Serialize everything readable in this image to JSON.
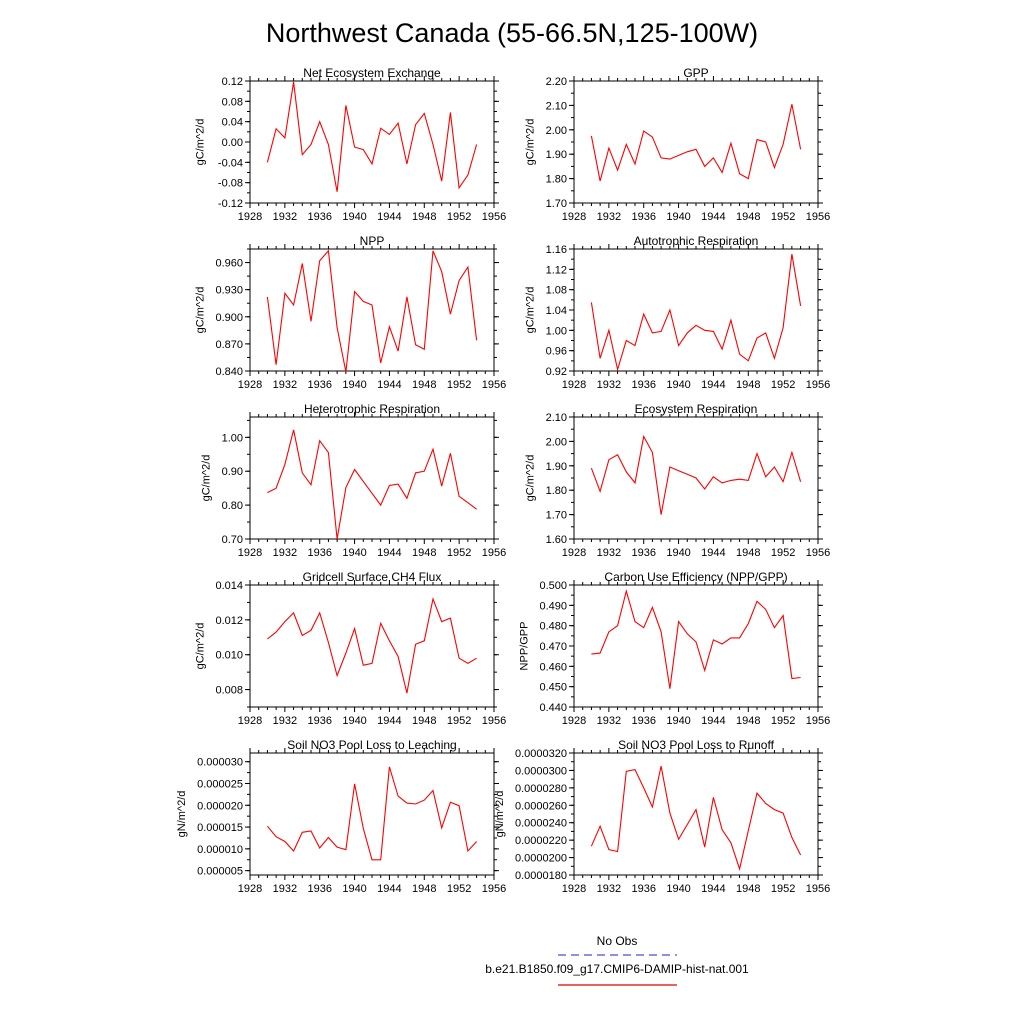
{
  "figure": {
    "title": "Northwest Canada (55-66.5N,125-100W)"
  },
  "legend": {
    "items": [
      {
        "label": "No Obs",
        "color": "#4a4adf",
        "dash": true
      },
      {
        "label": "b.e21.B1850.f09_g17.CMIP6-DAMIP-hist-nat.001",
        "color": "#e00000",
        "dash": false
      }
    ]
  },
  "series_color": "#ff0000",
  "chart_data": [
    {
      "type": "line",
      "title": "Net Ecosystem Exchange",
      "ylabel": "gC/m^2/d",
      "xlim": [
        1928,
        1956
      ],
      "xticks": [
        1928,
        1932,
        1936,
        1940,
        1944,
        1948,
        1952,
        1956
      ],
      "ylim": [
        -0.12,
        0.12
      ],
      "yticks": [
        "-0.12",
        "-0.08",
        "-0.04",
        "0.00",
        "0.04",
        "0.08",
        "0.12"
      ],
      "x": [
        1930,
        1931,
        1932,
        1933,
        1934,
        1935,
        1936,
        1937,
        1938,
        1939,
        1940,
        1941,
        1942,
        1943,
        1944,
        1945,
        1946,
        1947,
        1948,
        1949,
        1950,
        1951,
        1952,
        1953,
        1954
      ],
      "values": [
        -0.04,
        0.026,
        0.008,
        0.118,
        -0.025,
        -0.005,
        0.04,
        -0.005,
        -0.098,
        0.072,
        -0.01,
        -0.015,
        -0.043,
        0.027,
        0.015,
        0.037,
        -0.043,
        0.034,
        0.056,
        -0.005,
        -0.077,
        0.058,
        -0.09,
        -0.065,
        -0.005
      ]
    },
    {
      "type": "line",
      "title": "GPP",
      "ylabel": "gC/m^2/d",
      "xlim": [
        1928,
        1956
      ],
      "xticks": [
        1928,
        1932,
        1936,
        1940,
        1944,
        1948,
        1952,
        1956
      ],
      "ylim": [
        1.7,
        2.2
      ],
      "yticks": [
        "1.70",
        "1.80",
        "1.90",
        "2.00",
        "2.10",
        "2.20"
      ],
      "x": [
        1930,
        1931,
        1932,
        1933,
        1934,
        1935,
        1936,
        1937,
        1938,
        1939,
        1940,
        1941,
        1942,
        1943,
        1944,
        1945,
        1946,
        1947,
        1948,
        1949,
        1950,
        1951,
        1952,
        1953,
        1954
      ],
      "values": [
        1.975,
        1.79,
        1.925,
        1.835,
        1.94,
        1.86,
        1.995,
        1.97,
        1.885,
        1.88,
        1.895,
        1.91,
        1.92,
        1.85,
        1.885,
        1.825,
        1.945,
        1.82,
        1.8,
        1.96,
        1.95,
        1.845,
        1.94,
        2.105,
        1.92
      ]
    },
    {
      "type": "line",
      "title": "NPP",
      "ylabel": "gC/m^2/d",
      "xlim": [
        1928,
        1956
      ],
      "xticks": [
        1928,
        1932,
        1936,
        1940,
        1944,
        1948,
        1952,
        1956
      ],
      "ylim": [
        0.84,
        0.975
      ],
      "yticks": [
        "0.840",
        "0.870",
        "0.900",
        "0.930",
        "0.960"
      ],
      "ytick_values": [
        0.84,
        0.87,
        0.9,
        0.93,
        0.96
      ],
      "x": [
        1930,
        1931,
        1932,
        1933,
        1934,
        1935,
        1936,
        1937,
        1938,
        1939,
        1940,
        1941,
        1942,
        1943,
        1944,
        1945,
        1946,
        1947,
        1948,
        1949,
        1950,
        1951,
        1952,
        1953,
        1954
      ],
      "values": [
        0.922,
        0.847,
        0.926,
        0.913,
        0.959,
        0.895,
        0.962,
        0.973,
        0.888,
        0.839,
        0.928,
        0.917,
        0.913,
        0.849,
        0.889,
        0.862,
        0.922,
        0.869,
        0.864,
        0.973,
        0.95,
        0.903,
        0.94,
        0.955,
        0.874
      ]
    },
    {
      "type": "line",
      "title": "Autotrophic Respiration",
      "ylabel": "gC/m^2/d",
      "xlim": [
        1928,
        1956
      ],
      "xticks": [
        1928,
        1932,
        1936,
        1940,
        1944,
        1948,
        1952,
        1956
      ],
      "ylim": [
        0.92,
        1.16
      ],
      "yticks": [
        "0.92",
        "0.96",
        "1.00",
        "1.04",
        "1.08",
        "1.12",
        "1.16"
      ],
      "x": [
        1930,
        1931,
        1932,
        1933,
        1934,
        1935,
        1936,
        1937,
        1938,
        1939,
        1940,
        1941,
        1942,
        1943,
        1944,
        1945,
        1946,
        1947,
        1948,
        1949,
        1950,
        1951,
        1952,
        1953,
        1954
      ],
      "values": [
        1.055,
        0.945,
        1.0,
        0.923,
        0.98,
        0.97,
        1.032,
        0.995,
        0.998,
        1.04,
        0.97,
        0.995,
        1.01,
        1.0,
        0.998,
        0.963,
        1.02,
        0.953,
        0.94,
        0.985,
        0.995,
        0.945,
        1.005,
        1.15,
        1.048
      ]
    },
    {
      "type": "line",
      "title": "Heterotrophic Respiration",
      "ylabel": "gC/m^2/d",
      "xlim": [
        1928,
        1956
      ],
      "xticks": [
        1928,
        1932,
        1936,
        1940,
        1944,
        1948,
        1952,
        1956
      ],
      "ylim": [
        0.7,
        1.06
      ],
      "yticks": [
        "0.70",
        "0.80",
        "0.90",
        "1.00"
      ],
      "ytick_values": [
        0.7,
        0.8,
        0.9,
        1.0
      ],
      "x": [
        1930,
        1931,
        1932,
        1933,
        1934,
        1935,
        1936,
        1937,
        1938,
        1939,
        1940,
        1941,
        1942,
        1943,
        1944,
        1945,
        1946,
        1947,
        1948,
        1949,
        1950,
        1951,
        1952,
        1953,
        1954
      ],
      "values": [
        0.837,
        0.85,
        0.92,
        1.022,
        0.895,
        0.86,
        0.99,
        0.955,
        0.7,
        0.852,
        0.905,
        0.87,
        0.835,
        0.8,
        0.858,
        0.862,
        0.82,
        0.895,
        0.9,
        0.965,
        0.856,
        0.953,
        0.826,
        0.807,
        0.788
      ]
    },
    {
      "type": "line",
      "title": "Ecosystem Respiration",
      "ylabel": "gC/m^2/d",
      "xlim": [
        1928,
        1956
      ],
      "xticks": [
        1928,
        1932,
        1936,
        1940,
        1944,
        1948,
        1952,
        1956
      ],
      "ylim": [
        1.6,
        2.1
      ],
      "yticks": [
        "1.60",
        "1.70",
        "1.80",
        "1.90",
        "2.00",
        "2.10"
      ],
      "x": [
        1930,
        1931,
        1932,
        1933,
        1934,
        1935,
        1936,
        1937,
        1938,
        1939,
        1940,
        1941,
        1942,
        1943,
        1944,
        1945,
        1946,
        1947,
        1948,
        1949,
        1950,
        1951,
        1952,
        1953,
        1954
      ],
      "values": [
        1.89,
        1.795,
        1.925,
        1.945,
        1.875,
        1.83,
        2.02,
        1.955,
        1.7,
        1.895,
        1.88,
        1.865,
        1.85,
        1.805,
        1.855,
        1.83,
        1.84,
        1.845,
        1.84,
        1.95,
        1.855,
        1.895,
        1.835,
        1.955,
        1.835
      ]
    },
    {
      "type": "line",
      "title": "Gridcell Surface CH4 Flux",
      "ylabel": "gC/m^2/d",
      "xlim": [
        1928,
        1956
      ],
      "xticks": [
        1928,
        1932,
        1936,
        1940,
        1944,
        1948,
        1952,
        1956
      ],
      "ylim": [
        0.007,
        0.014
      ],
      "yticks": [
        "0.008",
        "0.010",
        "0.012",
        "0.014"
      ],
      "ytick_values": [
        0.008,
        0.01,
        0.012,
        0.014
      ],
      "x": [
        1930,
        1931,
        1932,
        1933,
        1934,
        1935,
        1936,
        1937,
        1938,
        1939,
        1940,
        1941,
        1942,
        1943,
        1944,
        1945,
        1946,
        1947,
        1948,
        1949,
        1950,
        1951,
        1952,
        1953,
        1954
      ],
      "values": [
        0.0109,
        0.0113,
        0.0119,
        0.0124,
        0.0111,
        0.0114,
        0.0124,
        0.0107,
        0.0088,
        0.0101,
        0.0115,
        0.0094,
        0.0095,
        0.0118,
        0.0108,
        0.0099,
        0.0078,
        0.0106,
        0.0108,
        0.0132,
        0.0119,
        0.0121,
        0.0098,
        0.0095,
        0.0098
      ]
    },
    {
      "type": "line",
      "title": "Carbon Use Efficiency (NPP/GPP)",
      "ylabel": "NPP/GPP",
      "xlim": [
        1928,
        1956
      ],
      "xticks": [
        1928,
        1932,
        1936,
        1940,
        1944,
        1948,
        1952,
        1956
      ],
      "ylim": [
        0.44,
        0.5
      ],
      "yticks": [
        "0.440",
        "0.450",
        "0.460",
        "0.470",
        "0.480",
        "0.490",
        "0.500"
      ],
      "x": [
        1930,
        1931,
        1932,
        1933,
        1934,
        1935,
        1936,
        1937,
        1938,
        1939,
        1940,
        1941,
        1942,
        1943,
        1944,
        1945,
        1946,
        1947,
        1948,
        1949,
        1950,
        1951,
        1952,
        1953,
        1954
      ],
      "values": [
        0.466,
        0.4665,
        0.477,
        0.48,
        0.497,
        0.482,
        0.479,
        0.489,
        0.477,
        0.449,
        0.482,
        0.476,
        0.472,
        0.458,
        0.473,
        0.471,
        0.474,
        0.474,
        0.481,
        0.492,
        0.488,
        0.479,
        0.485,
        0.454,
        0.4545
      ]
    },
    {
      "type": "line",
      "title": "Soil NO3 Pool Loss to Leaching",
      "ylabel": "gN/m^2/d",
      "xlim": [
        1928,
        1956
      ],
      "xticks": [
        1928,
        1932,
        1936,
        1940,
        1944,
        1948,
        1952,
        1956
      ],
      "ylim": [
        4e-06,
        3.2e-05
      ],
      "yticks": [
        "0.000005",
        "0.000010",
        "0.000015",
        "0.000020",
        "0.000025",
        "0.000030"
      ],
      "ytick_values": [
        5e-06,
        1e-05,
        1.5e-05,
        2e-05,
        2.5e-05,
        3e-05
      ],
      "x": [
        1930,
        1931,
        1932,
        1933,
        1934,
        1935,
        1936,
        1937,
        1938,
        1939,
        1940,
        1941,
        1942,
        1943,
        1944,
        1945,
        1946,
        1947,
        1948,
        1949,
        1950,
        1951,
        1952,
        1953,
        1954
      ],
      "values": [
        1.52e-05,
        1.28e-05,
        1.17e-05,
        9.5e-06,
        1.38e-05,
        1.41e-05,
        1.02e-05,
        1.26e-05,
        1.04e-05,
        9.8e-06,
        2.49e-05,
        1.47e-05,
        7.5e-06,
        7.5e-06,
        2.88e-05,
        2.21e-05,
        2.05e-05,
        2.03e-05,
        2.12e-05,
        2.34e-05,
        1.48e-05,
        2.07e-05,
        1.99e-05,
        9.5e-06,
        1.17e-05
      ]
    },
    {
      "type": "line",
      "title": "Soil NO3 Pool Loss to Runoff",
      "ylabel": "gN/m^2/d",
      "xlim": [
        1928,
        1956
      ],
      "xticks": [
        1928,
        1932,
        1936,
        1940,
        1944,
        1948,
        1952,
        1956
      ],
      "ylim": [
        1.8e-05,
        3.2e-05
      ],
      "yticks": [
        "0.0000180",
        "0.0000200",
        "0.0000220",
        "0.0000240",
        "0.0000260",
        "0.0000280",
        "0.0000300",
        "0.0000320"
      ],
      "x": [
        1930,
        1931,
        1932,
        1933,
        1934,
        1935,
        1936,
        1937,
        1938,
        1939,
        1940,
        1941,
        1942,
        1943,
        1944,
        1945,
        1946,
        1947,
        1948,
        1949,
        1950,
        1951,
        1952,
        1953,
        1954
      ],
      "values": [
        2.13e-05,
        2.36e-05,
        2.09e-05,
        2.07e-05,
        2.99e-05,
        3.01e-05,
        2.8e-05,
        2.58e-05,
        3.05e-05,
        2.51e-05,
        2.21e-05,
        2.38e-05,
        2.55e-05,
        2.12e-05,
        2.69e-05,
        2.32e-05,
        2.17e-05,
        1.87e-05,
        2.31e-05,
        2.74e-05,
        2.62e-05,
        2.55e-05,
        2.51e-05,
        2.23e-05,
        2.03e-05
      ]
    }
  ]
}
